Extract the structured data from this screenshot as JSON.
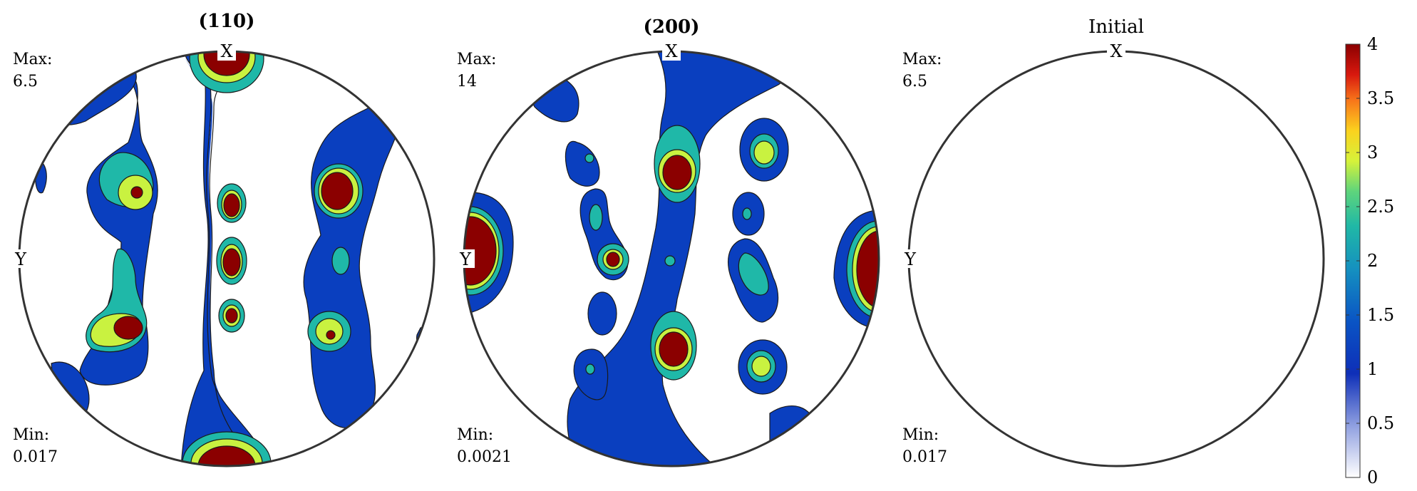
{
  "figures": [
    {
      "title": "(110)",
      "title_bold": true,
      "x_axis": "X",
      "y_axis": "Y",
      "max_label": "Max:",
      "max_value": "6.5",
      "min_label": "Min:",
      "min_value": "0.017"
    },
    {
      "title": "(200)",
      "title_bold": true,
      "x_axis": "X",
      "y_axis": "Y",
      "max_label": "Max:",
      "max_value": "14",
      "min_label": "Min:",
      "min_value": "0.0021"
    },
    {
      "title": "Initial",
      "title_bold": false,
      "x_axis": "X",
      "y_axis": "Y",
      "max_label": "Max:",
      "max_value": "6.5",
      "min_label": "Min:",
      "min_value": "0.017"
    }
  ],
  "colorbar": {
    "ticks": [
      "0",
      "0.5",
      "1",
      "1.5",
      "2",
      "2.5",
      "3",
      "3.5",
      "4"
    ],
    "range": [
      0,
      4
    ],
    "colormap": [
      "#ffffff",
      "#0e2fb8",
      "#0a3fbf",
      "#1380c2",
      "#1fb8a8",
      "#45cf8c",
      "#c9f240",
      "#fbe31f",
      "#fb9a14",
      "#f03b12",
      "#8b0000"
    ]
  },
  "colors": {
    "level1": "#0a3fbf",
    "level2": "#1fb8a8",
    "level3": "#c9f240",
    "level4": "#8b0000",
    "outline": "#1a1a1a"
  }
}
